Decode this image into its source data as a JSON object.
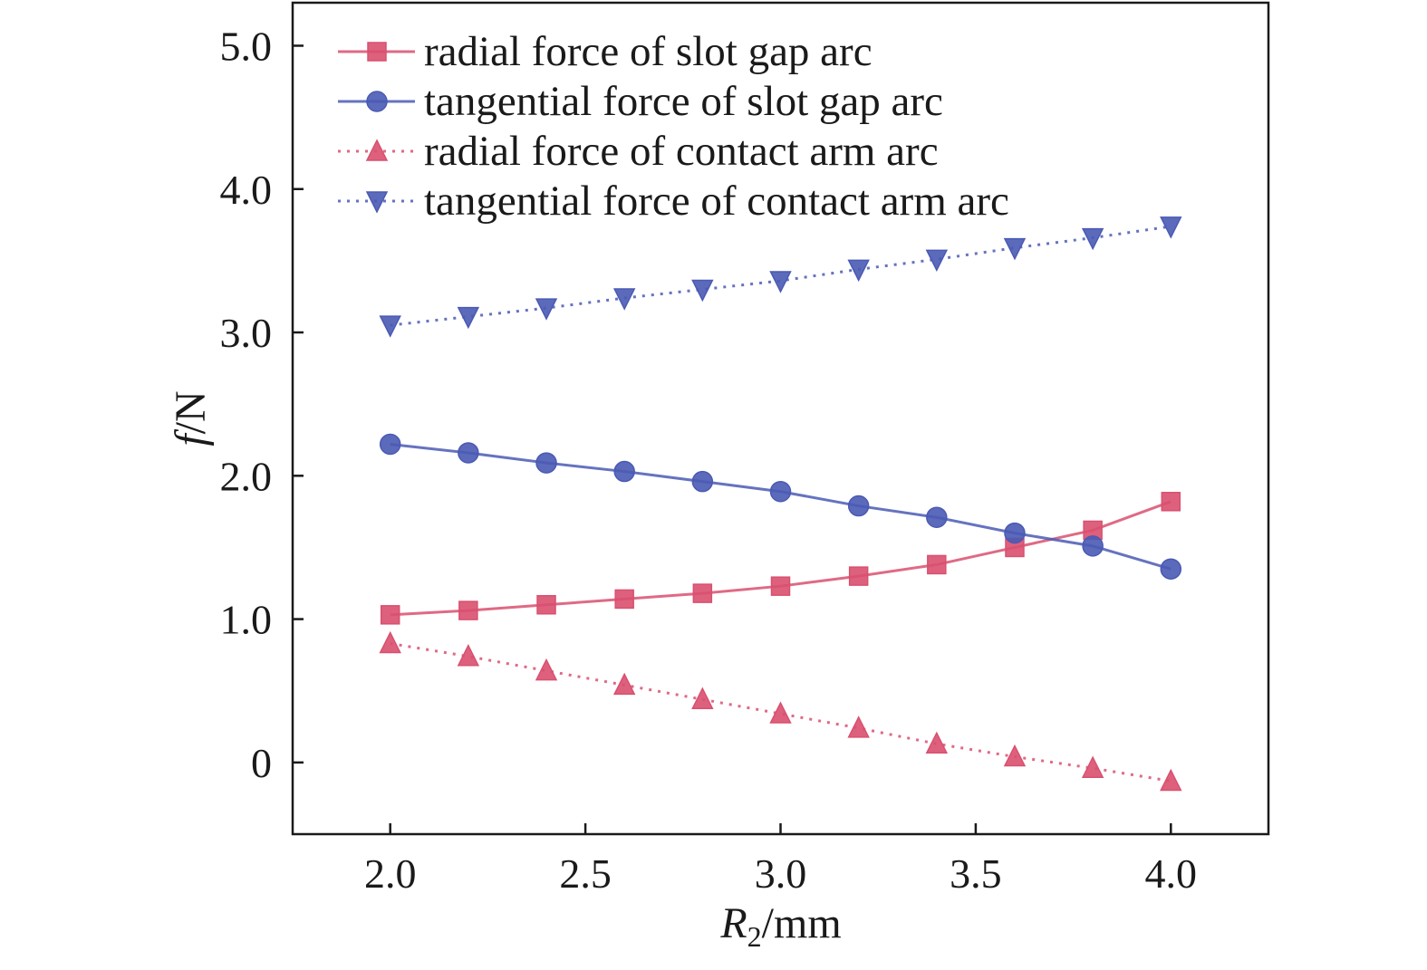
{
  "chart_data": {
    "type": "line",
    "title": "",
    "xlabel_main": "R",
    "xlabel_sub": "2",
    "xlabel_unit": "/mm",
    "ylabel_main": "f",
    "ylabel_unit": "/N",
    "xlim": [
      1.75,
      4.25
    ],
    "ylim": [
      -0.5,
      5.3
    ],
    "x_ticks": [
      2.0,
      2.5,
      3.0,
      3.5,
      4.0
    ],
    "x_tick_labels": [
      "2.0",
      "2.5",
      "3.0",
      "3.5",
      "4.0"
    ],
    "y_ticks": [
      0,
      1.0,
      2.0,
      3.0,
      4.0,
      5.0
    ],
    "y_tick_labels": [
      "0",
      "1.0",
      "2.0",
      "3.0",
      "4.0",
      "5.0"
    ],
    "grid": false,
    "legend_position": "top-left",
    "x": [
      2.0,
      2.2,
      2.4,
      2.6,
      2.8,
      3.0,
      3.2,
      3.4,
      3.6,
      3.8,
      4.0
    ],
    "series": [
      {
        "name": "radial force of slot gap arc",
        "marker": "square",
        "line_style": "solid",
        "color": "#d9506f",
        "values": [
          1.03,
          1.06,
          1.1,
          1.14,
          1.18,
          1.23,
          1.3,
          1.38,
          1.5,
          1.62,
          1.82
        ]
      },
      {
        "name": "tangential force of slot gap arc",
        "marker": "circle",
        "line_style": "solid",
        "color": "#4a5ab4",
        "values": [
          2.22,
          2.16,
          2.09,
          2.03,
          1.96,
          1.89,
          1.79,
          1.71,
          1.6,
          1.51,
          1.35
        ]
      },
      {
        "name": "radial force of contact arm arc",
        "marker": "triangle-up",
        "line_style": "dotted",
        "color": "#d9506f",
        "values": [
          0.83,
          0.74,
          0.64,
          0.54,
          0.44,
          0.34,
          0.24,
          0.13,
          0.04,
          -0.04,
          -0.13
        ]
      },
      {
        "name": "tangential force of contact arm arc",
        "marker": "triangle-down",
        "line_style": "dotted",
        "color": "#4a5ab4",
        "values": [
          3.05,
          3.11,
          3.17,
          3.24,
          3.3,
          3.36,
          3.44,
          3.51,
          3.59,
          3.66,
          3.74
        ]
      }
    ]
  }
}
